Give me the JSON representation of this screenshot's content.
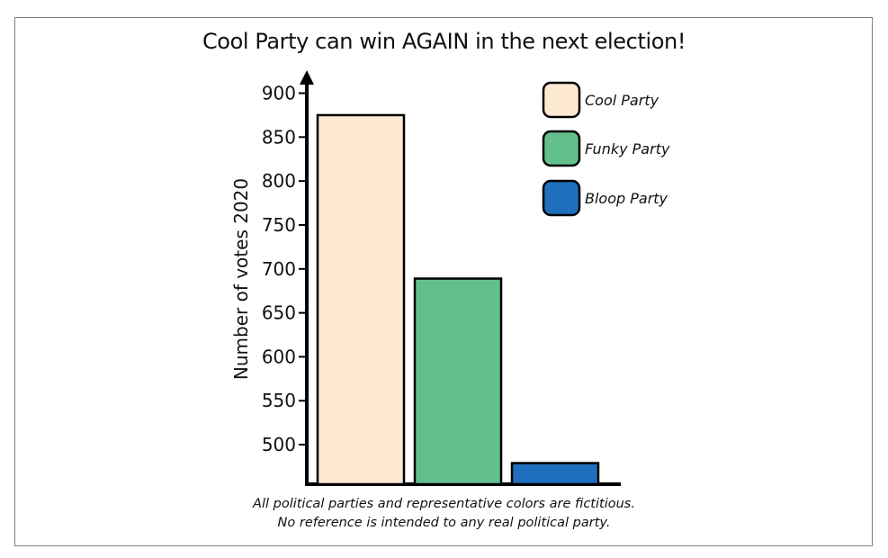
{
  "chart_data": {
    "type": "bar",
    "title": "Cool Party can win AGAIN in the next election!",
    "xlabel": "",
    "ylabel": "Number of votes 2020",
    "ylim": [
      455,
      920
    ],
    "yticks": [
      500,
      550,
      600,
      650,
      700,
      750,
      800,
      850,
      900
    ],
    "grid": false,
    "legend_position": "top-right",
    "categories": [
      "Cool Party",
      "Funky Party",
      "Bloop Party"
    ],
    "values": [
      875,
      689,
      479
    ],
    "colors": [
      "#fde8d2",
      "#63c08c",
      "#1f6fbd"
    ],
    "edge_color": "#000000",
    "footnote": [
      "All political parties and representative colors are fictitious.",
      "No reference is intended to any real political party."
    ]
  }
}
